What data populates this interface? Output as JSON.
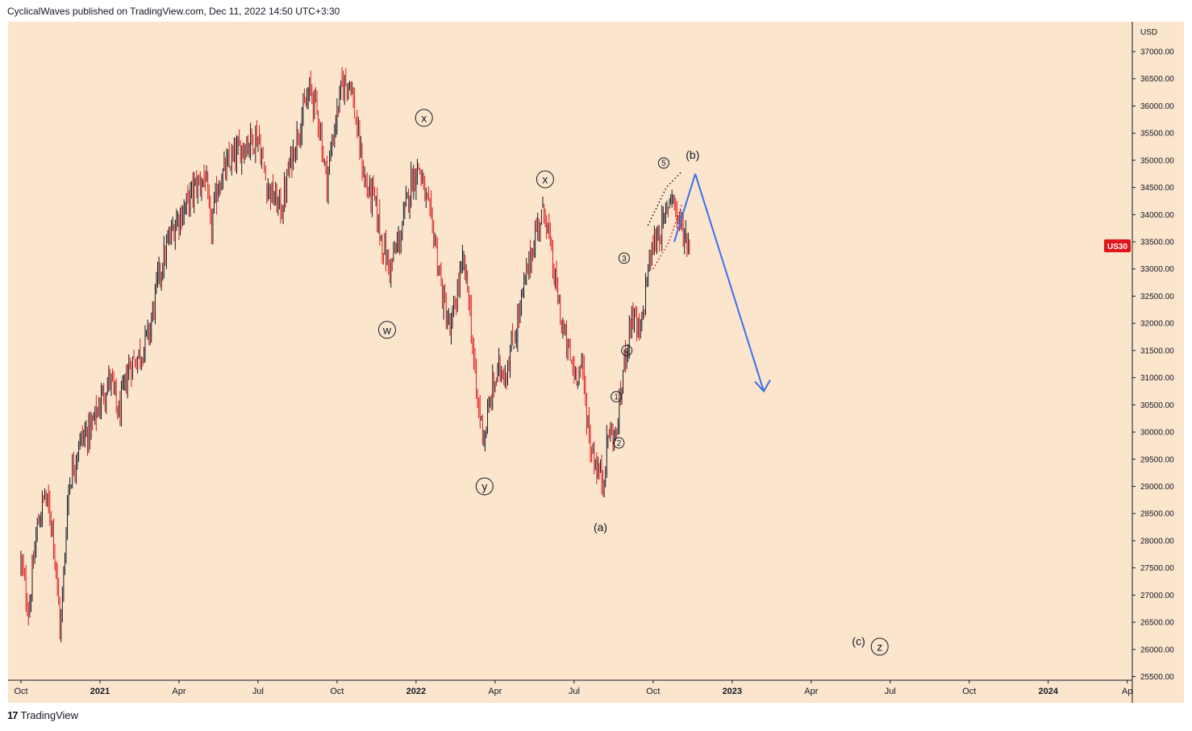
{
  "header": {
    "text": "CyclicalWaves published on TradingView.com, Dec 11, 2022 14:50 UTC+3:30"
  },
  "footer": {
    "logo": "17",
    "brand": "TradingView"
  },
  "colors": {
    "background": "#fbe5cd",
    "up_candle": "#131722",
    "down_candle": "#e0161c",
    "projection_arrow": "#3c6ef0",
    "price_badge": "#e0161c"
  },
  "chart_data": {
    "type": "candlestick",
    "symbol_badge": "US30",
    "price_axis": {
      "currency": "USD",
      "ticks": [
        37000,
        36500,
        36000,
        35500,
        35000,
        34500,
        34000,
        33500,
        33000,
        32500,
        32000,
        31500,
        31000,
        30500,
        30000,
        29500,
        29000,
        28500,
        28000,
        27500,
        27000,
        26500,
        26000,
        25500
      ],
      "tick_format_decimals": 2
    },
    "time_axis": {
      "labels": [
        {
          "text": "Oct",
          "bold": false
        },
        {
          "text": "2021",
          "bold": true
        },
        {
          "text": "Apr",
          "bold": false
        },
        {
          "text": "Jul",
          "bold": false
        },
        {
          "text": "Oct",
          "bold": false
        },
        {
          "text": "2022",
          "bold": true
        },
        {
          "text": "Apr",
          "bold": false
        },
        {
          "text": "Jul",
          "bold": false
        },
        {
          "text": "Oct",
          "bold": false
        },
        {
          "text": "2023",
          "bold": true
        },
        {
          "text": "Apr",
          "bold": false
        },
        {
          "text": "Jul",
          "bold": false
        },
        {
          "text": "Oct",
          "bold": false
        },
        {
          "text": "2024",
          "bold": true
        },
        {
          "text": "Ap",
          "bold": false
        }
      ]
    },
    "price_path": [
      {
        "t": 0.0,
        "p": 27600
      },
      {
        "t": 0.3,
        "p": 26700
      },
      {
        "t": 0.6,
        "p": 28200
      },
      {
        "t": 0.9,
        "p": 28850
      },
      {
        "t": 1.2,
        "p": 28300
      },
      {
        "t": 1.5,
        "p": 26300
      },
      {
        "t": 1.8,
        "p": 29000
      },
      {
        "t": 2.2,
        "p": 29800
      },
      {
        "t": 2.7,
        "p": 30100
      },
      {
        "t": 3.1,
        "p": 30700
      },
      {
        "t": 3.4,
        "p": 31000
      },
      {
        "t": 3.7,
        "p": 30300
      },
      {
        "t": 4.1,
        "p": 31200
      },
      {
        "t": 4.6,
        "p": 31500
      },
      {
        "t": 4.9,
        "p": 31900
      },
      {
        "t": 5.2,
        "p": 32800
      },
      {
        "t": 5.6,
        "p": 33500
      },
      {
        "t": 5.9,
        "p": 33900
      },
      {
        "t": 6.2,
        "p": 34100
      },
      {
        "t": 6.6,
        "p": 34500
      },
      {
        "t": 7.0,
        "p": 34700
      },
      {
        "t": 7.2,
        "p": 33700
      },
      {
        "t": 7.5,
        "p": 34600
      },
      {
        "t": 8.0,
        "p": 35000
      },
      {
        "t": 8.5,
        "p": 35300
      },
      {
        "t": 9.0,
        "p": 35450
      },
      {
        "t": 9.3,
        "p": 34600
      },
      {
        "t": 9.6,
        "p": 34300
      },
      {
        "t": 9.9,
        "p": 34100
      },
      {
        "t": 10.2,
        "p": 34900
      },
      {
        "t": 10.6,
        "p": 35700
      },
      {
        "t": 11.0,
        "p": 36300
      },
      {
        "t": 11.3,
        "p": 35800
      },
      {
        "t": 11.6,
        "p": 34600
      },
      {
        "t": 11.9,
        "p": 35600
      },
      {
        "t": 12.2,
        "p": 36400
      },
      {
        "t": 12.5,
        "p": 36500
      },
      {
        "t": 12.8,
        "p": 35400
      },
      {
        "t": 13.1,
        "p": 34500
      },
      {
        "t": 13.4,
        "p": 34300
      },
      {
        "t": 13.7,
        "p": 33500
      },
      {
        "t": 14.0,
        "p": 33000
      },
      {
        "t": 14.4,
        "p": 33600
      },
      {
        "t": 14.8,
        "p": 34600
      },
      {
        "t": 15.1,
        "p": 34900
      },
      {
        "t": 15.4,
        "p": 34200
      },
      {
        "t": 15.7,
        "p": 33600
      },
      {
        "t": 16.0,
        "p": 32500
      },
      {
        "t": 16.3,
        "p": 31800
      },
      {
        "t": 16.6,
        "p": 32700
      },
      {
        "t": 16.8,
        "p": 33100
      },
      {
        "t": 17.0,
        "p": 32500
      },
      {
        "t": 17.3,
        "p": 30600
      },
      {
        "t": 17.6,
        "p": 29900
      },
      {
        "t": 17.9,
        "p": 30800
      },
      {
        "t": 18.2,
        "p": 31200
      },
      {
        "t": 18.4,
        "p": 31100
      },
      {
        "t": 18.8,
        "p": 31900
      },
      {
        "t": 19.2,
        "p": 32900
      },
      {
        "t": 19.6,
        "p": 33800
      },
      {
        "t": 19.9,
        "p": 34100
      },
      {
        "t": 20.2,
        "p": 33000
      },
      {
        "t": 20.6,
        "p": 31800
      },
      {
        "t": 21.0,
        "p": 31100
      },
      {
        "t": 21.3,
        "p": 31200
      },
      {
        "t": 21.6,
        "p": 29800
      },
      {
        "t": 21.9,
        "p": 29300
      },
      {
        "t": 22.1,
        "p": 29100
      },
      {
        "t": 22.3,
        "p": 30000
      },
      {
        "t": 22.6,
        "p": 29900
      },
      {
        "t": 22.9,
        "p": 31300
      },
      {
        "t": 23.2,
        "p": 32200
      },
      {
        "t": 23.5,
        "p": 31700
      },
      {
        "t": 23.8,
        "p": 33000
      },
      {
        "t": 24.1,
        "p": 33600
      },
      {
        "t": 24.4,
        "p": 33800
      },
      {
        "t": 24.7,
        "p": 34500
      },
      {
        "t": 24.9,
        "p": 34000
      },
      {
        "t": 25.2,
        "p": 33600
      },
      {
        "t": 25.4,
        "p": 33500
      }
    ],
    "projection": {
      "from": {
        "t": 25.6,
        "p": 34750
      },
      "to": {
        "t": 28.2,
        "p": 30750
      }
    },
    "wave_labels": [
      {
        "text": "x",
        "circled": true,
        "t": 15.3,
        "p": 35780
      },
      {
        "text": "w",
        "circled": true,
        "t": 13.9,
        "p": 31880
      },
      {
        "text": "x",
        "circled": true,
        "t": 19.9,
        "p": 34650
      },
      {
        "text": "y",
        "circled": true,
        "t": 17.6,
        "p": 29000
      },
      {
        "text": "(a)",
        "circled": false,
        "t": 22.0,
        "p": 28250
      },
      {
        "text": "(b)",
        "circled": false,
        "t": 25.5,
        "p": 35100
      },
      {
        "text": "5",
        "circled": true,
        "small": true,
        "t": 24.4,
        "p": 34950
      },
      {
        "text": "3",
        "circled": true,
        "small": true,
        "t": 22.9,
        "p": 33200
      },
      {
        "text": "4",
        "circled": true,
        "small": true,
        "t": 23.0,
        "p": 31500
      },
      {
        "text": "1",
        "circled": true,
        "small": true,
        "t": 22.6,
        "p": 30650
      },
      {
        "text": "2",
        "circled": true,
        "small": true,
        "t": 22.7,
        "p": 29800
      },
      {
        "text": "(c)",
        "circled": false,
        "t": 31.8,
        "p": 26150
      },
      {
        "text": "z",
        "circled": true,
        "t": 32.6,
        "p": 26050
      }
    ]
  }
}
